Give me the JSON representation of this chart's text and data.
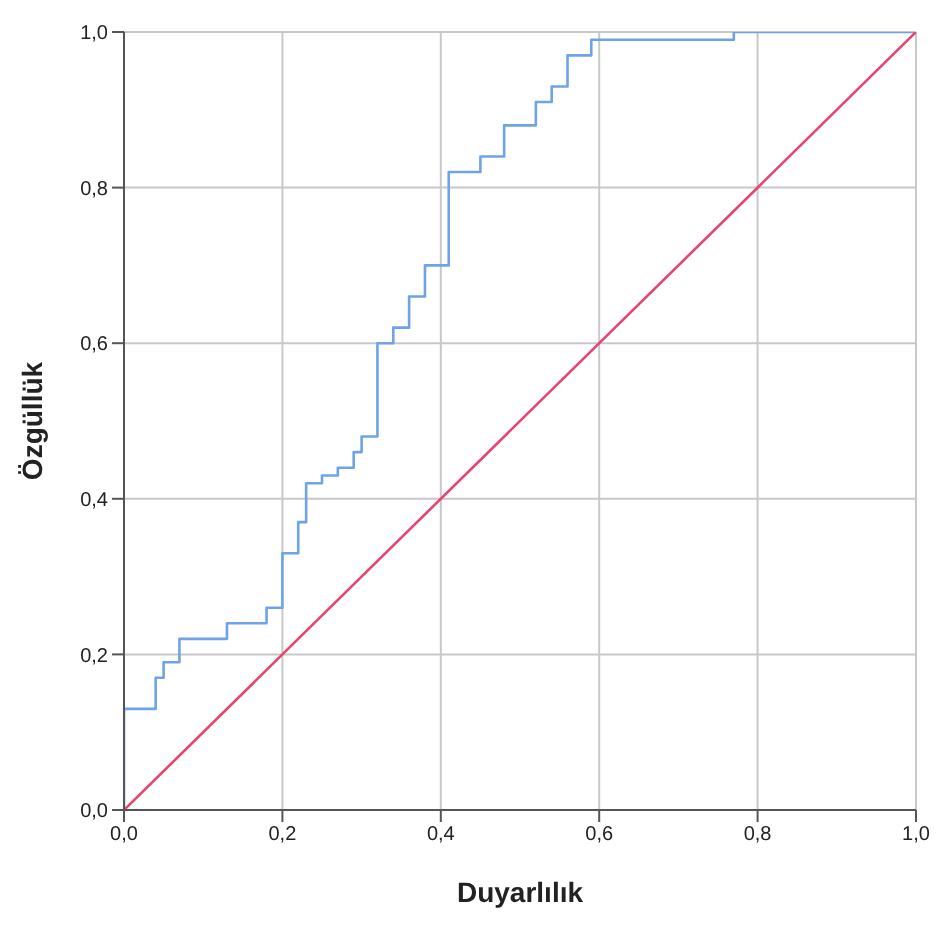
{
  "chart_data": {
    "type": "step",
    "xlabel": "Duyarlılık",
    "ylabel": "Özgüllük",
    "xlim": [
      0,
      1
    ],
    "ylim": [
      0,
      1
    ],
    "xticks": [
      {
        "value": 0,
        "label": "0,0"
      },
      {
        "value": 0.2,
        "label": "0,2"
      },
      {
        "value": 0.4,
        "label": "0,4"
      },
      {
        "value": 0.6,
        "label": "0,6"
      },
      {
        "value": 0.8,
        "label": "0,8"
      },
      {
        "value": 1,
        "label": "1,0"
      }
    ],
    "yticks": [
      {
        "value": 0,
        "label": "0,0"
      },
      {
        "value": 0.2,
        "label": "0,2"
      },
      {
        "value": 0.4,
        "label": "0,4"
      },
      {
        "value": 0.6,
        "label": "0,6"
      },
      {
        "value": 0.8,
        "label": "0,8"
      },
      {
        "value": 1,
        "label": "1,0"
      }
    ],
    "grid": true,
    "marker": "none",
    "series": [
      {
        "color": "#6fa3e8",
        "x": [
          0,
          0,
          0.04,
          0.05,
          0.07,
          0.13,
          0.18,
          0.2,
          0.22,
          0.23,
          0.25,
          0.27,
          0.29,
          0.3,
          0.32,
          0.34,
          0.36,
          0.38,
          0.41,
          0.45,
          0.48,
          0.52,
          0.54,
          0.56,
          0.59,
          0.77,
          1
        ],
        "values": [
          0,
          0.13,
          0.17,
          0.19,
          0.22,
          0.24,
          0.26,
          0.33,
          0.37,
          0.42,
          0.43,
          0.44,
          0.46,
          0.48,
          0.6,
          0.62,
          0.66,
          0.7,
          0.82,
          0.84,
          0.88,
          0.91,
          0.93,
          0.97,
          0.99,
          1,
          1
        ]
      },
      {
        "type": "line",
        "color": "#e5456e",
        "x": [
          0,
          1
        ],
        "values": [
          0,
          1
        ]
      }
    ]
  }
}
